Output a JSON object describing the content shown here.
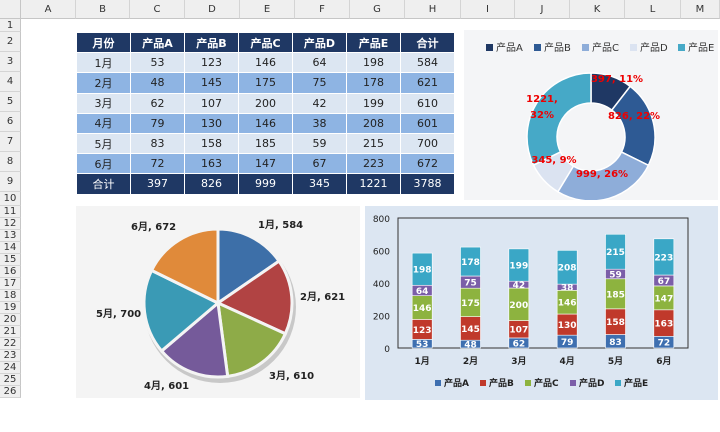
{
  "sheet": {
    "columns": [
      "A",
      "B",
      "C",
      "D",
      "E",
      "F",
      "G",
      "H",
      "I",
      "J",
      "K",
      "L",
      "M"
    ],
    "rows": [
      "1",
      "2",
      "3",
      "4",
      "5",
      "6",
      "7",
      "8",
      "9",
      "10",
      "11",
      "12",
      "13",
      "14",
      "15",
      "16",
      "17",
      "18",
      "19",
      "20",
      "21",
      "22",
      "23",
      "24",
      "25",
      "26"
    ]
  },
  "table": {
    "headers": [
      "月份",
      "产品A",
      "产品B",
      "产品C",
      "产品D",
      "产品E",
      "合计"
    ],
    "rows": [
      [
        "1月",
        "53",
        "123",
        "146",
        "64",
        "198",
        "584"
      ],
      [
        "2月",
        "48",
        "145",
        "175",
        "75",
        "178",
        "621"
      ],
      [
        "3月",
        "62",
        "107",
        "200",
        "42",
        "199",
        "610"
      ],
      [
        "4月",
        "79",
        "130",
        "146",
        "38",
        "208",
        "601"
      ],
      [
        "5月",
        "83",
        "158",
        "185",
        "59",
        "215",
        "700"
      ],
      [
        "6月",
        "72",
        "163",
        "147",
        "67",
        "223",
        "672"
      ]
    ],
    "total": [
      "合计",
      "397",
      "826",
      "999",
      "345",
      "1221",
      "3788"
    ]
  },
  "colors": {
    "A": "#3e6fb0",
    "B": "#c0392b",
    "C": "#8db33f",
    "D": "#7b5ea8",
    "E": "#3aa7c6",
    "header": "#1f3864"
  },
  "chart_data": [
    {
      "type": "pie",
      "variant": "doughnut",
      "categories": [
        "产品A",
        "产品B",
        "产品C",
        "产品D",
        "产品E"
      ],
      "values": [
        397,
        826,
        999,
        345,
        1221
      ],
      "labels": [
        "397, 11%",
        "826, 22%",
        "999, 26%",
        "345, 9%",
        "1221, 32%"
      ],
      "colors": [
        "#1f3864",
        "#2e5a94",
        "#8eadd9",
        "#dbe3f1",
        "#46a9c7"
      ],
      "legend": "top"
    },
    {
      "type": "pie",
      "categories": [
        "1月",
        "2月",
        "3月",
        "4月",
        "5月",
        "6月"
      ],
      "values": [
        584,
        621,
        610,
        601,
        700,
        672
      ],
      "labels": [
        "1月, 584",
        "2月, 621",
        "3月, 610",
        "4月, 601",
        "5月, 700",
        "6月, 672"
      ],
      "colors": [
        "#3d6fa8",
        "#b14343",
        "#8eab48",
        "#755a9a",
        "#3a9ab5",
        "#e08a3a"
      ],
      "legend": "none"
    },
    {
      "type": "bar",
      "variant": "stacked",
      "categories": [
        "1月",
        "2月",
        "3月",
        "4月",
        "5月",
        "6月"
      ],
      "series": [
        {
          "name": "产品A",
          "values": [
            53,
            48,
            62,
            79,
            83,
            72
          ],
          "color": "#3e6fb0"
        },
        {
          "name": "产品B",
          "values": [
            123,
            145,
            107,
            130,
            158,
            163
          ],
          "color": "#c0392b"
        },
        {
          "name": "产品C",
          "values": [
            146,
            175,
            200,
            146,
            185,
            147
          ],
          "color": "#8db33f"
        },
        {
          "name": "产品D",
          "values": [
            64,
            75,
            42,
            38,
            59,
            67
          ],
          "color": "#7b5ea8"
        },
        {
          "name": "产品E",
          "values": [
            198,
            178,
            199,
            208,
            215,
            223
          ],
          "color": "#3aa7c6"
        }
      ],
      "ylim": [
        0,
        800
      ],
      "yticks": [
        "0",
        "200",
        "400",
        "600",
        "800"
      ],
      "legend": "bottom",
      "grid": false
    }
  ]
}
